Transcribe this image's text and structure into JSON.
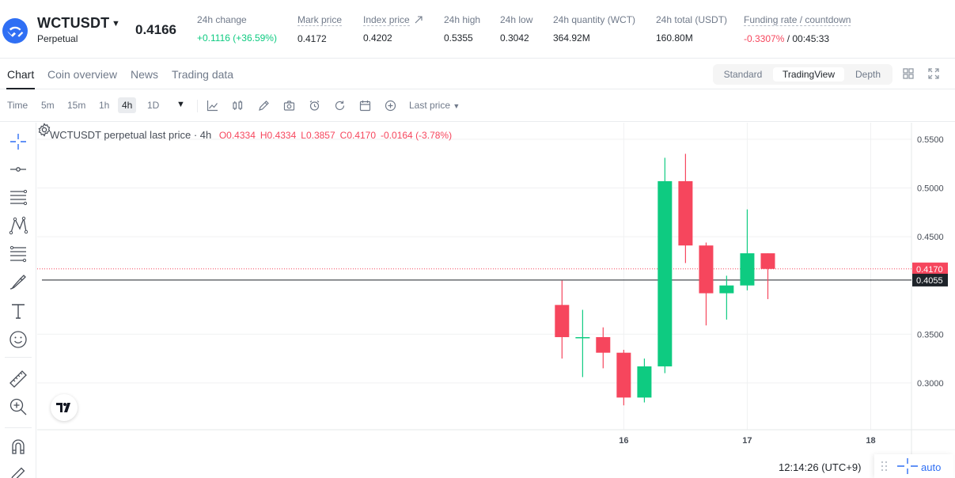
{
  "header": {
    "symbol": "WCTUSDT",
    "contract_type": "Perpetual",
    "last_price": "0.4166",
    "stats": [
      {
        "label": "24h change",
        "value": "+0.1116 (+36.59%)"
      },
      {
        "label": "Mark price",
        "value": "0.4172"
      },
      {
        "label": "Index price",
        "value": "0.4202"
      },
      {
        "label": "24h high",
        "value": "0.5355"
      },
      {
        "label": "24h low",
        "value": "0.3042"
      },
      {
        "label": "24h quantity (WCT)",
        "value": "364.92M"
      },
      {
        "label": "24h total (USDT)",
        "value": "160.80M"
      },
      {
        "label": "Funding rate / countdown",
        "value_rate": "-0.3307%",
        "value_countdown": " / 00:45:33"
      }
    ]
  },
  "tabs": [
    {
      "label": "Chart"
    },
    {
      "label": "Coin overview"
    },
    {
      "label": "News"
    },
    {
      "label": "Trading data"
    }
  ],
  "view_modes": [
    {
      "label": "Standard"
    },
    {
      "label": "TradingView"
    },
    {
      "label": "Depth"
    }
  ],
  "toolbar": {
    "intervals": [
      "Time",
      "5m",
      "15m",
      "1h",
      "4h",
      "1D"
    ],
    "active_interval": "4h",
    "price_type": "Last price"
  },
  "chart_data": {
    "type": "candlestick",
    "legend": {
      "title": "WCTUSDT perpetual last price · 4h",
      "open": "O0.4334",
      "high": "H0.4334",
      "low": "L0.3857",
      "close": "C0.4170",
      "change": "-0.0164 (-3.78%)"
    },
    "y_ticks": [
      "0.5500",
      "0.5000",
      "0.4500",
      "0.3500",
      "0.3000"
    ],
    "y_tick_values": [
      0.55,
      0.5,
      0.45,
      0.35,
      0.3
    ],
    "ylim": [
      0.252,
      0.567
    ],
    "x_ticks": [
      {
        "label": "16",
        "t": 16.0
      },
      {
        "label": "17",
        "t": 17.0
      },
      {
        "label": "18",
        "t": 18.0
      }
    ],
    "xlim": [
      11.25,
      18.33
    ],
    "candles": [
      {
        "t": 15.5,
        "open": 0.38,
        "high": 0.405,
        "low": 0.325,
        "close": 0.347
      },
      {
        "t": 15.667,
        "open": 0.347,
        "high": 0.375,
        "low": 0.306,
        "close": 0.347
      },
      {
        "t": 15.833,
        "open": 0.347,
        "high": 0.357,
        "low": 0.315,
        "close": 0.331
      },
      {
        "t": 16.0,
        "open": 0.331,
        "high": 0.334,
        "low": 0.277,
        "close": 0.285
      },
      {
        "t": 16.167,
        "open": 0.285,
        "high": 0.325,
        "low": 0.28,
        "close": 0.317
      },
      {
        "t": 16.333,
        "open": 0.317,
        "high": 0.531,
        "low": 0.31,
        "close": 0.507
      },
      {
        "t": 16.5,
        "open": 0.507,
        "high": 0.535,
        "low": 0.423,
        "close": 0.441
      },
      {
        "t": 16.667,
        "open": 0.441,
        "high": 0.444,
        "low": 0.359,
        "close": 0.392
      },
      {
        "t": 16.833,
        "open": 0.392,
        "high": 0.41,
        "low": 0.365,
        "close": 0.4
      },
      {
        "t": 17.0,
        "open": 0.4,
        "high": 0.478,
        "low": 0.395,
        "close": 0.433
      },
      {
        "t": 17.167,
        "open": 0.433,
        "high": 0.433,
        "low": 0.386,
        "close": 0.417
      }
    ],
    "last_price_line": {
      "value": 0.417,
      "label": "0.4170",
      "color": "#f6465d"
    },
    "crosshair_line": {
      "value": 0.4055,
      "label": "0.4055",
      "color": "#1e2329"
    },
    "colors": {
      "up": "#0ecb81",
      "down": "#f6465d",
      "grid": "#f0f1f2"
    }
  },
  "status": {
    "clock": "12:14:26 (UTC+9)",
    "auto_label": "auto"
  },
  "icons": {
    "left_tools": [
      "crosshair-icon",
      "trend-line-icon",
      "horizontal-lines-icon",
      "pattern-icon",
      "fib-lines-icon",
      "brush-icon",
      "text-icon",
      "emoji-icon",
      "ruler-icon",
      "zoom-in-icon",
      "magnet-icon",
      "pencil-lock-icon"
    ]
  }
}
